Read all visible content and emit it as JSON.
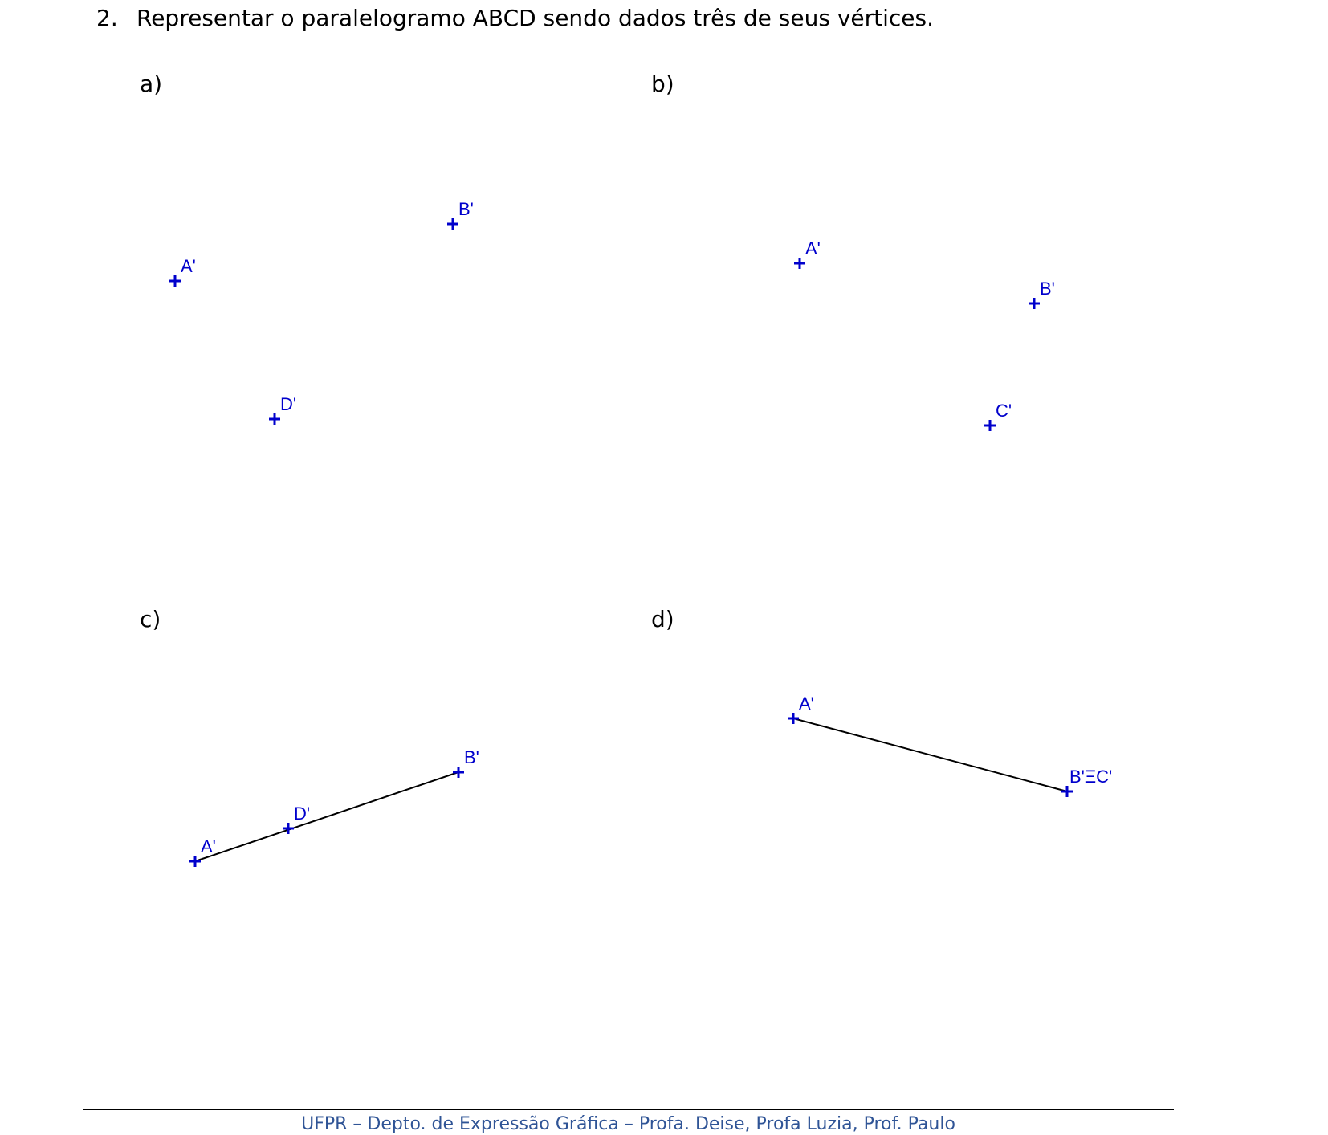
{
  "question": {
    "number": "2.",
    "text": "Representar o paralelogramo ABCD sendo dados três de seus vértices."
  },
  "parts": {
    "a": {
      "label": "a)",
      "points": [
        {
          "name": "A'"
        },
        {
          "name": "B'"
        },
        {
          "name": "D'"
        }
      ]
    },
    "b": {
      "label": "b)",
      "points": [
        {
          "name": "A'"
        },
        {
          "name": "B'"
        },
        {
          "name": "C'"
        }
      ]
    },
    "c": {
      "label": "c)",
      "points": [
        {
          "name": "A'"
        },
        {
          "name": "D'"
        },
        {
          "name": "B'"
        }
      ]
    },
    "d": {
      "label": "d)",
      "points": [
        {
          "name": "A'"
        },
        {
          "name": "B'ΞC'"
        }
      ]
    }
  },
  "colors": {
    "point": "#0000cc",
    "segment": "#000000",
    "footer": "#2f5496"
  },
  "footer": {
    "text": "UFPR – Depto. de Expressão Gráfica – Profa. Deise, Profa Luzia, Prof. Paulo"
  }
}
